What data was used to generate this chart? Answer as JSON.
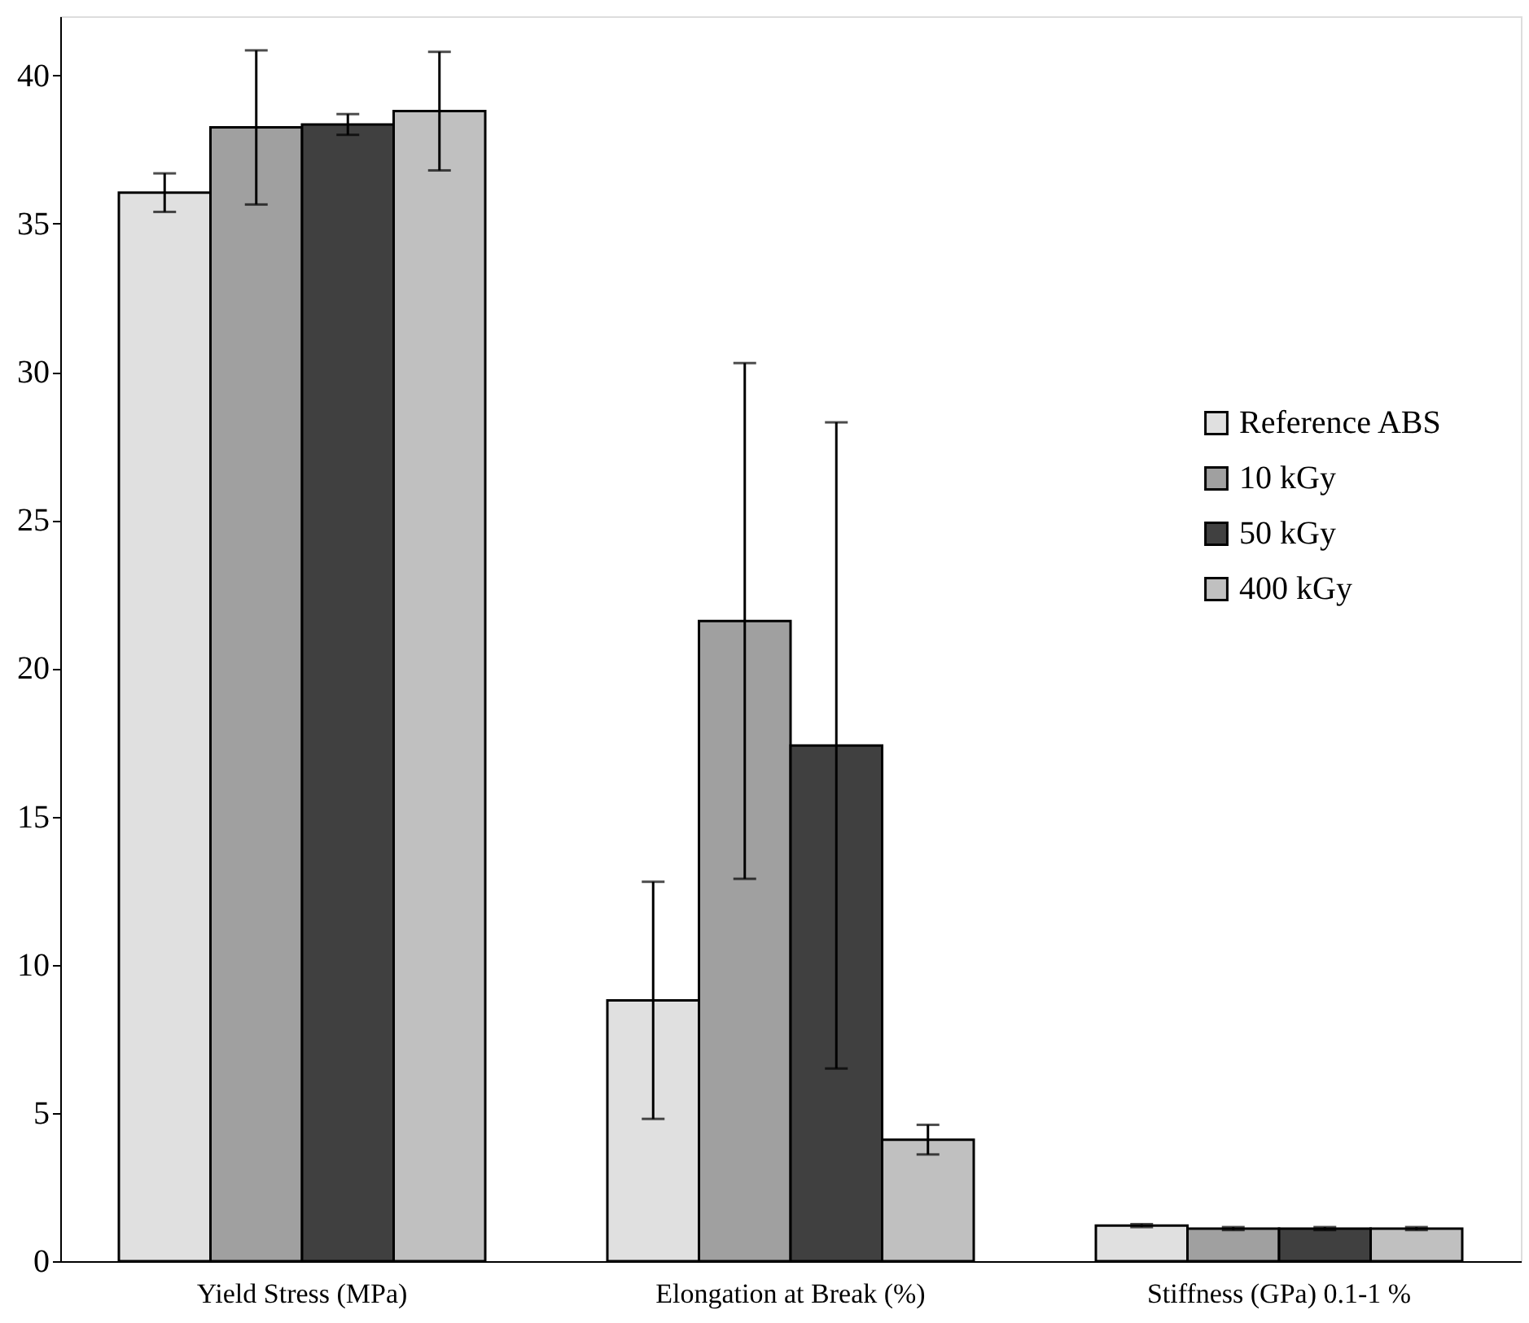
{
  "chart_data": {
    "type": "bar",
    "categories": [
      "Yield Stress (MPa)",
      "Elongation at Break (%)",
      "Stiffness (GPa) 0.1-1 %"
    ],
    "series": [
      {
        "name": "Reference ABS",
        "color": "#e0e0e0",
        "values": [
          36.05,
          8.8,
          1.2
        ],
        "errors": [
          0.65,
          4.0,
          0.05
        ]
      },
      {
        "name": "10 kGy",
        "color": "#a0a0a0",
        "values": [
          38.25,
          21.6,
          1.1
        ],
        "errors": [
          2.6,
          8.7,
          0.05
        ]
      },
      {
        "name": "50 kGy",
        "color": "#404040",
        "values": [
          38.35,
          17.4,
          1.1
        ],
        "errors": [
          0.35,
          10.9,
          0.05
        ]
      },
      {
        "name": "400 kGy",
        "color": "#c0c0c0",
        "values": [
          38.8,
          4.1,
          1.1
        ],
        "errors": [
          2.0,
          0.5,
          0.05
        ]
      }
    ],
    "ylim": [
      0,
      42
    ],
    "yticks": [
      0,
      5,
      10,
      15,
      20,
      25,
      30,
      35,
      40
    ],
    "grid": false,
    "legend": "right"
  }
}
